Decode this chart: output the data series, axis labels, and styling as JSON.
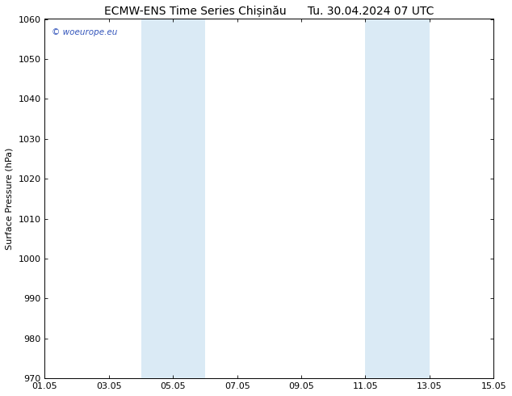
{
  "title": "ECMW-ENS Time Series Chișinău      Tu. 30.04.2024 07 UTC",
  "ylabel": "Surface Pressure (hPa)",
  "ylim": [
    970,
    1060
  ],
  "yticks": [
    970,
    980,
    990,
    1000,
    1010,
    1020,
    1030,
    1040,
    1050,
    1060
  ],
  "xtick_labels": [
    "01.05",
    "03.05",
    "05.05",
    "07.05",
    "09.05",
    "11.05",
    "13.05",
    "15.05"
  ],
  "xtick_positions": [
    0,
    2,
    4,
    6,
    8,
    10,
    12,
    14
  ],
  "shaded_bands": [
    {
      "x_start": 3,
      "x_end": 5
    },
    {
      "x_start": 10,
      "x_end": 12
    }
  ],
  "band_color": "#daeaf5",
  "background_color": "#ffffff",
  "plot_bg_color": "#ffffff",
  "title_fontsize": 10,
  "axis_label_fontsize": 8,
  "tick_fontsize": 8,
  "watermark_text": "© woeurope.eu",
  "watermark_color": "#3355bb",
  "watermark_fontsize": 7.5,
  "xlim": [
    0,
    14
  ]
}
